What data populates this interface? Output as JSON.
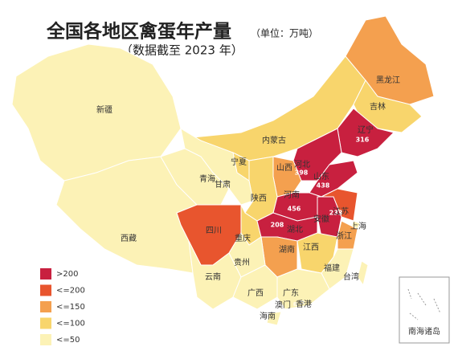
{
  "header": {
    "title": "全国各地区禽蛋年产量",
    "unit": "（单位：万吨）",
    "subtitle": "（数据截至 2023 年）"
  },
  "legend": [
    {
      "label": ">200",
      "color": "#c8203f"
    },
    {
      "label": "<=200",
      "color": "#e8552e"
    },
    {
      "label": "<=150",
      "color": "#f4a04f"
    },
    {
      "label": "<=100",
      "color": "#f8d56c"
    },
    {
      "label": "<=50",
      "color": "#fcf2b6"
    }
  ],
  "provinces": [
    {
      "name": "新疆",
      "color": "#fcf2b6"
    },
    {
      "name": "西藏",
      "color": "#fcf2b6"
    },
    {
      "name": "内蒙古",
      "color": "#f8d56c"
    },
    {
      "name": "黑龙江",
      "color": "#f4a04f"
    },
    {
      "name": "吉林",
      "color": "#f8d56c"
    },
    {
      "name": "辽宁",
      "color": "#c8203f",
      "value": 316
    },
    {
      "name": "河北",
      "color": "#c8203f",
      "value": 398
    },
    {
      "name": "山西",
      "color": "#f4a04f"
    },
    {
      "name": "山东",
      "color": "#c8203f",
      "value": 438
    },
    {
      "name": "河南",
      "color": "#c8203f",
      "value": 456
    },
    {
      "name": "陕西",
      "color": "#f8d56c"
    },
    {
      "name": "宁夏",
      "color": "#f8d56c"
    },
    {
      "name": "甘肃",
      "color": "#fcf2b6"
    },
    {
      "name": "青海",
      "color": "#fcf2b6"
    },
    {
      "name": "四川",
      "color": "#e8552e"
    },
    {
      "name": "重庆",
      "color": "#f8d56c"
    },
    {
      "name": "湖北",
      "color": "#c8203f",
      "value": 208
    },
    {
      "name": "安徽",
      "color": "#c8203f",
      "value": 233
    },
    {
      "name": "江苏",
      "color": "#e8552e"
    },
    {
      "name": "上海",
      "color": "#fcf2b6"
    },
    {
      "name": "浙江",
      "color": "#f4a04f"
    },
    {
      "name": "湖南",
      "color": "#f4a04f"
    },
    {
      "name": "江西",
      "color": "#f8d56c"
    },
    {
      "name": "福建",
      "color": "#fcf2b6"
    },
    {
      "name": "贵州",
      "color": "#fcf2b6"
    },
    {
      "name": "云南",
      "color": "#fcf2b6"
    },
    {
      "name": "广西",
      "color": "#fcf2b6"
    },
    {
      "name": "广东",
      "color": "#fcf2b6"
    },
    {
      "name": "海南",
      "color": "#fcf2b6"
    },
    {
      "name": "台湾",
      "color": "#fcf2b6"
    },
    {
      "name": "香港",
      "color": "#fcf2b6"
    },
    {
      "name": "澳门",
      "color": "#fcf2b6"
    }
  ],
  "inset": {
    "label": "南海诸岛"
  }
}
